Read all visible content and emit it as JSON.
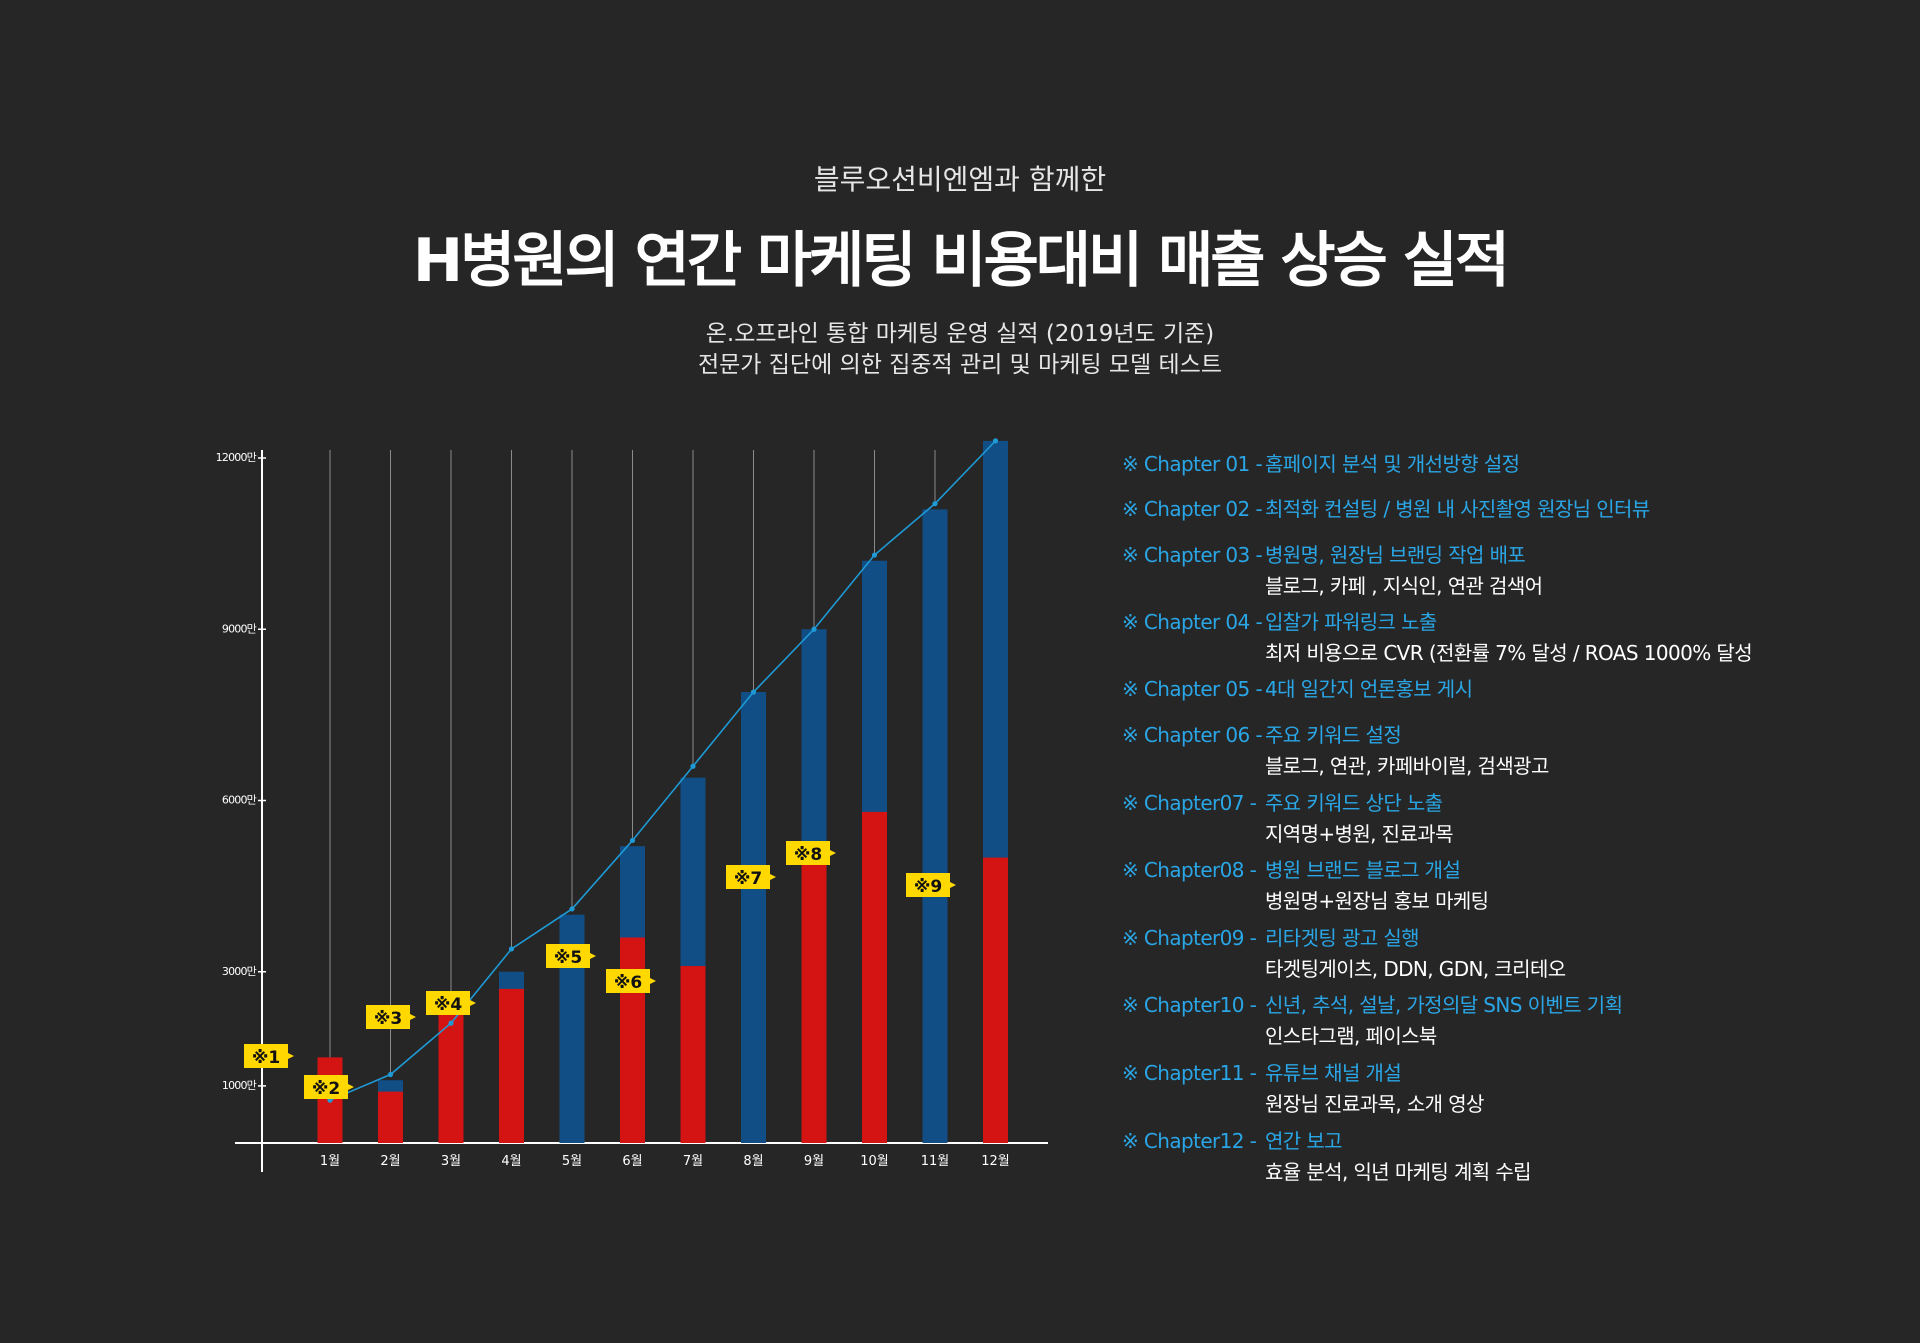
{
  "header": {
    "pre_title": "블루오션비엔엠과 함께한",
    "title": "H병원의 연간 마케팅 비용대비 매출 상승 실적",
    "subtitle_line1": "온.오프라인 통합 마케팅 운영 실적 (2019년도 기준)",
    "subtitle_line2": "전문가 집단에 의한 집중적 관리 및 마케팅 모델 테스트"
  },
  "colors": {
    "background": "#262626",
    "bar_total": "#114e86",
    "bar_cost": "#d41313",
    "trend_line": "#1e9ad6",
    "marker_bg": "#ffd800",
    "chapter_accent": "#2aa6e6"
  },
  "chart_data": {
    "type": "bar",
    "categories": [
      "1월",
      "2월",
      "3월",
      "4월",
      "5월",
      "6월",
      "7월",
      "8월",
      "9월",
      "10월",
      "11월",
      "12월"
    ],
    "y_ticks": [
      {
        "value": 1000,
        "label": "1000만"
      },
      {
        "value": 3000,
        "label": "3000만"
      },
      {
        "value": 6000,
        "label": "6000만"
      },
      {
        "value": 9000,
        "label": "9000만"
      },
      {
        "value": 12000,
        "label": "12000만"
      }
    ],
    "ylim": [
      0,
      12000
    ],
    "series": [
      {
        "values": [
          1200,
          1100,
          2200,
          3000,
          4000,
          5200,
          6400,
          7900,
          9000,
          10200,
          11100,
          12300
        ]
      },
      {
        "values": [
          1500,
          900,
          2400,
          2700,
          0,
          3600,
          3100,
          0,
          5200,
          5800,
          0,
          5000
        ]
      }
    ],
    "trend_values": [
      750,
      1200,
      2100,
      3400,
      4100,
      5300,
      6600,
      7900,
      9000,
      10300,
      11200,
      12300
    ],
    "markers": [
      {
        "label": "※1",
        "month_index": 0
      },
      {
        "label": "※2",
        "month_index": 0
      },
      {
        "label": "※3",
        "month_index": 2
      },
      {
        "label": "※4",
        "month_index": 2
      },
      {
        "label": "※5",
        "month_index": 5
      },
      {
        "label": "※6",
        "month_index": 6
      },
      {
        "label": "※7",
        "month_index": 8
      },
      {
        "label": "※8",
        "month_index": 9
      },
      {
        "label": "※9",
        "month_index": 11
      }
    ],
    "grid": false,
    "legend": "none"
  },
  "chapters": [
    {
      "label": "※ Chapter 01 -",
      "title": "홈페이지 분석 및 개선방향 설정",
      "detail": ""
    },
    {
      "label": "※ Chapter 02 -",
      "title": "최적화 컨설팅 / 병원 내 사진촬영 원장님 인터뷰",
      "detail": ""
    },
    {
      "label": "※ Chapter 03 -",
      "title": "병원명, 원장님 브랜딩 작업 배포",
      "detail": "블로그, 카페 , 지식인, 연관 검색어"
    },
    {
      "label": "※ Chapter 04 -",
      "title": "입찰가 파워링크 노출",
      "detail": "최저 비용으로 CVR (전환률 7% 달성 / ROAS 1000% 달성"
    },
    {
      "label": "※ Chapter 05 -",
      "title": "4대 일간지 언론홍보 게시",
      "detail": ""
    },
    {
      "label": "※ Chapter 06 -",
      "title": "주요 키워드 설정",
      "detail": "블로그, 연관, 카페바이럴, 검색광고"
    },
    {
      "label": "※ Chapter07 -",
      "title": "주요 키워드 상단 노출",
      "detail": "지역명+병원, 진료과목"
    },
    {
      "label": "※ Chapter08  -",
      "title": "병원 브랜드 블로그 개설",
      "detail": "병원명+원장님 홍보 마케팅"
    },
    {
      "label": "※ Chapter09 -",
      "title": "리타겟팅 광고 실행",
      "detail": "타겟팅게이츠, DDN, GDN, 크리테오"
    },
    {
      "label": "※ Chapter10 -",
      "title": "신년, 추석, 설날, 가정의달 SNS 이벤트 기획",
      "detail": "인스타그램, 페이스북"
    },
    {
      "label": "※ Chapter11 -",
      "title": "유튜브 채널 개설",
      "detail": "원장님 진료과목, 소개 영상"
    },
    {
      "label": "※ Chapter12 -",
      "title": "연간 보고",
      "detail": "효율 분석, 익년 마케팅 계획 수립"
    }
  ]
}
